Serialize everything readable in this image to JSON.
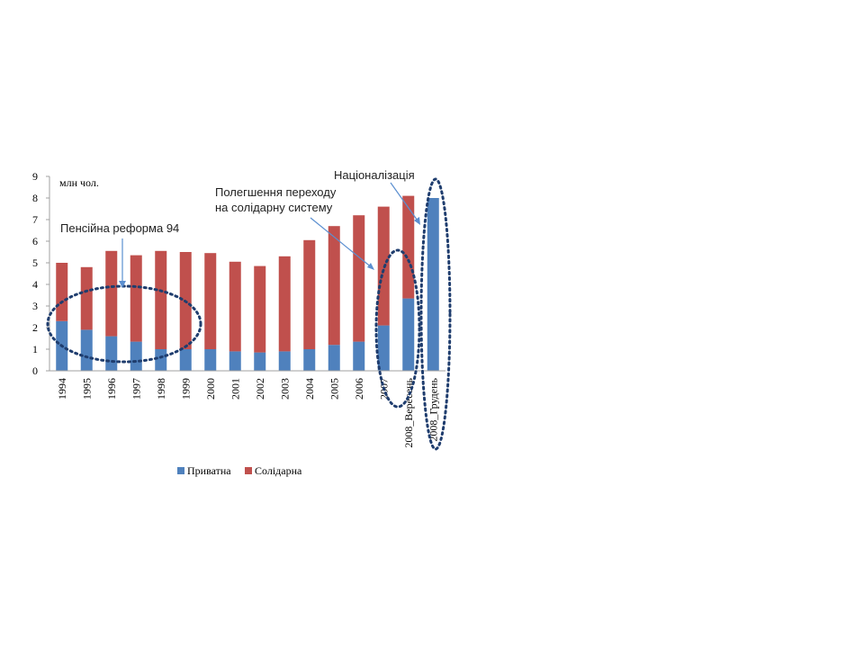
{
  "chart_data": {
    "type": "bar",
    "stacked": true,
    "unit_label": "млн чол.",
    "categories": [
      "1994",
      "1995",
      "1996",
      "1997",
      "1998",
      "1999",
      "2000",
      "2001",
      "2002",
      "2003",
      "2004",
      "2005",
      "2006",
      "2007",
      "2008_Вересень",
      "2008_Грудень"
    ],
    "series": [
      {
        "name": "Приватна",
        "color": "#4f81bd",
        "values": [
          2.3,
          1.9,
          1.6,
          1.35,
          1.0,
          1.0,
          1.0,
          0.9,
          0.85,
          0.9,
          1.0,
          1.2,
          1.35,
          2.1,
          3.35,
          8.0
        ]
      },
      {
        "name": "Солідарна",
        "color": "#c0504d",
        "values": [
          2.7,
          2.9,
          3.95,
          4.0,
          4.55,
          4.5,
          4.45,
          4.15,
          4.0,
          4.4,
          5.05,
          5.5,
          5.85,
          5.5,
          4.75,
          0
        ]
      }
    ],
    "ylim": [
      0,
      9
    ],
    "yticks": [
      0,
      1,
      2,
      3,
      4,
      5,
      6,
      7,
      8,
      9
    ],
    "legend_position": "bottom",
    "annotations": [
      {
        "text": "Пенсійна реформа 94"
      },
      {
        "text_lines": [
          "Полегшення переходу",
          "на солідарну систему"
        ]
      },
      {
        "text": "Націоналізація"
      }
    ]
  }
}
